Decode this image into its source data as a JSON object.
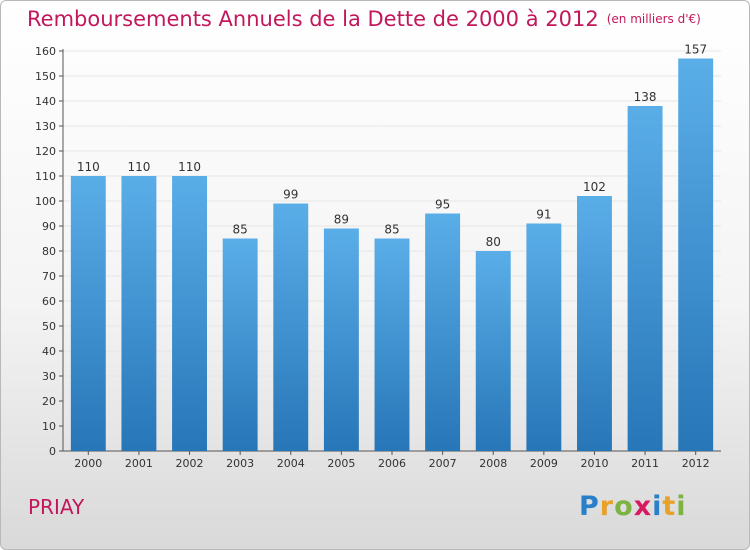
{
  "title": "Remboursements Annuels de la Dette de 2000 à 2012",
  "subtitle": "(en milliers d'€)",
  "commune": "PRIAY",
  "logo": {
    "letters": [
      "P",
      "r",
      "o",
      "x",
      "i",
      "t",
      "i"
    ],
    "colors": [
      "#2a7fc9",
      "#e8a12a",
      "#7cb342",
      "#d81b60",
      "#2a7fc9",
      "#e8a12a",
      "#7cb342"
    ]
  },
  "colors": {
    "bar_top": "#5aaee8",
    "bar_bottom": "#2776b8",
    "title": "#c2185b",
    "grid": "#e6e6e6"
  },
  "chart_data": {
    "type": "bar",
    "categories": [
      "2000",
      "2001",
      "2002",
      "2003",
      "2004",
      "2005",
      "2006",
      "2007",
      "2008",
      "2009",
      "2010",
      "2011",
      "2012"
    ],
    "values": [
      110,
      110,
      110,
      85,
      99,
      89,
      85,
      95,
      80,
      91,
      102,
      138,
      157
    ],
    "ylim": [
      0,
      160
    ],
    "yticks": [
      0,
      10,
      20,
      30,
      40,
      50,
      60,
      70,
      80,
      90,
      100,
      110,
      120,
      130,
      140,
      150,
      160
    ],
    "grid": true
  }
}
